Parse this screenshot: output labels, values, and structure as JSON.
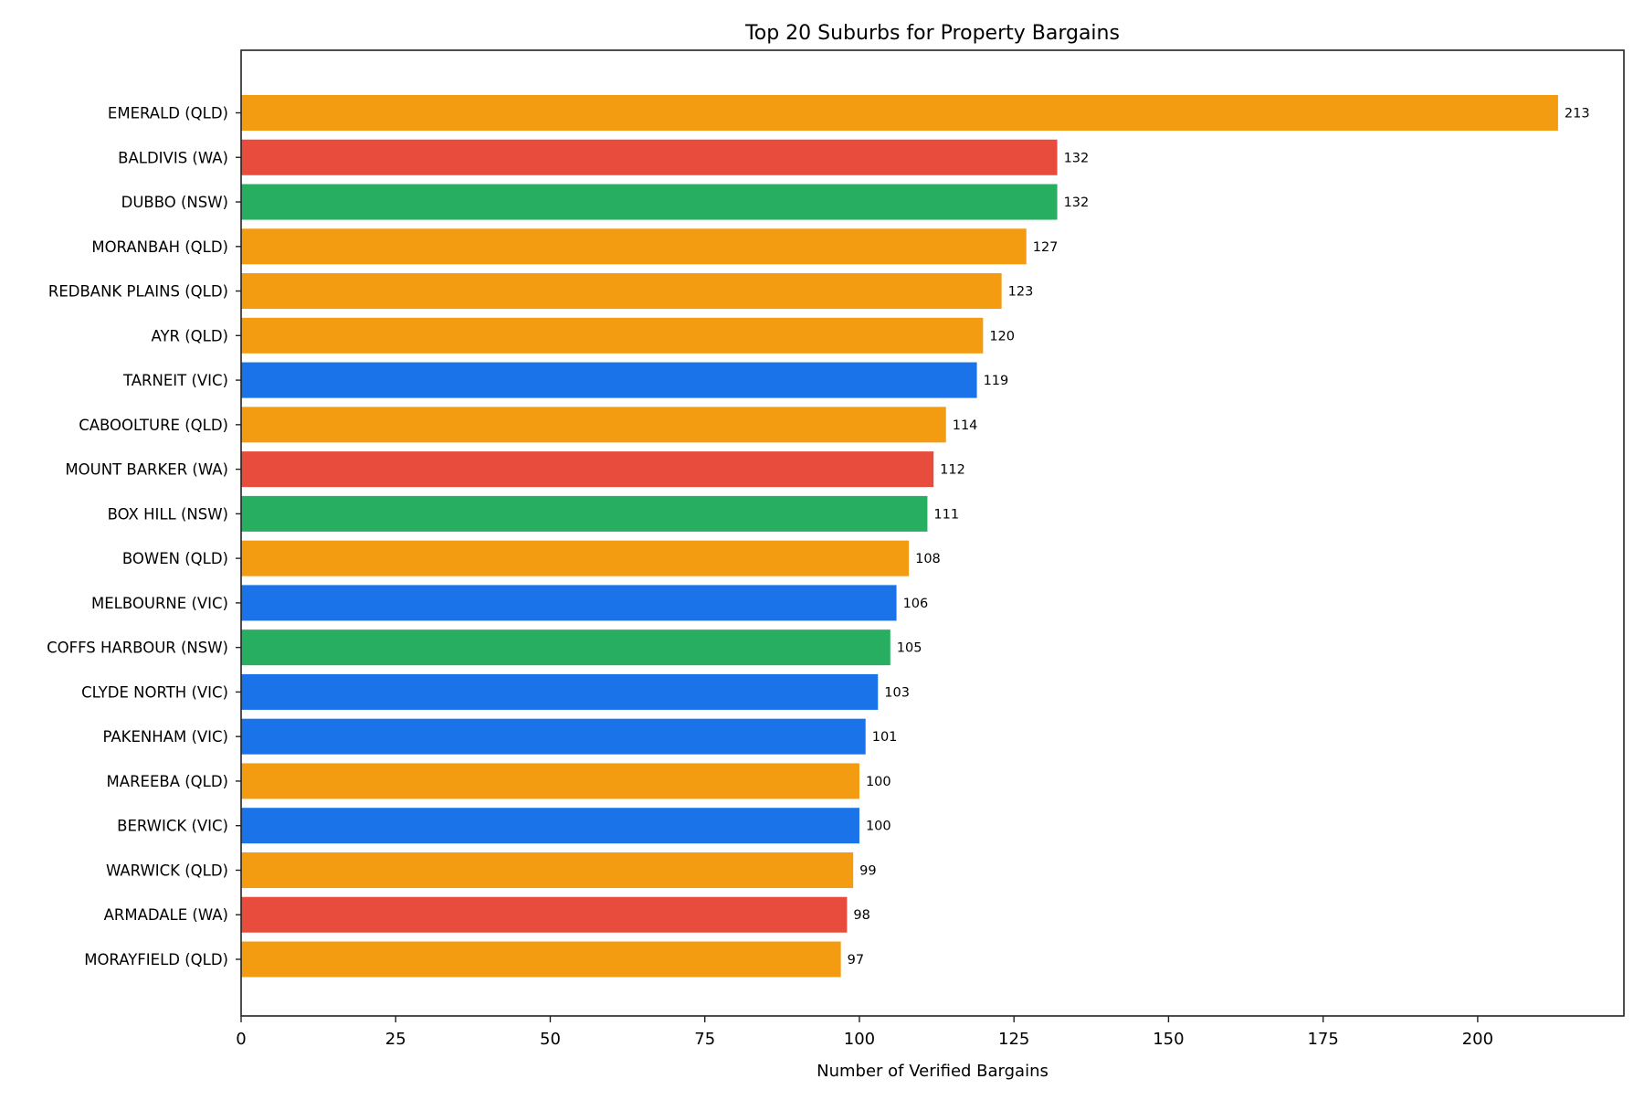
{
  "chart_data": {
    "type": "bar",
    "orientation": "horizontal",
    "title": "Top 20 Suburbs for Property Bargains",
    "xlabel": "Number of Verified Bargains",
    "ylabel": "",
    "xlim": [
      0,
      223.65
    ],
    "xticks": [
      0,
      25,
      50,
      75,
      100,
      125,
      150,
      175,
      200
    ],
    "grid": false,
    "categories": [
      "EMERALD (QLD)",
      "BALDIVIS (WA)",
      "DUBBO (NSW)",
      "MORANBAH (QLD)",
      "REDBANK PLAINS (QLD)",
      "AYR (QLD)",
      "TARNEIT (VIC)",
      "CABOOLTURE (QLD)",
      "MOUNT BARKER (WA)",
      "BOX HILL (NSW)",
      "BOWEN (QLD)",
      "MELBOURNE (VIC)",
      "COFFS HARBOUR (NSW)",
      "CLYDE NORTH (VIC)",
      "PAKENHAM (VIC)",
      "MAREEBA (QLD)",
      "BERWICK (VIC)",
      "WARWICK (QLD)",
      "ARMADALE (WA)",
      "MORAYFIELD (QLD)"
    ],
    "values": [
      213,
      132,
      132,
      127,
      123,
      120,
      119,
      114,
      112,
      111,
      108,
      106,
      105,
      103,
      101,
      100,
      100,
      99,
      98,
      97
    ],
    "bar_states": [
      "QLD",
      "WA",
      "NSW",
      "QLD",
      "QLD",
      "QLD",
      "VIC",
      "QLD",
      "WA",
      "NSW",
      "QLD",
      "VIC",
      "NSW",
      "VIC",
      "VIC",
      "QLD",
      "VIC",
      "QLD",
      "WA",
      "QLD"
    ],
    "state_colors": {
      "QLD": "#F39C12",
      "WA": "#E74C3C",
      "NSW": "#27AE60",
      "VIC": "#1A73E8"
    }
  }
}
